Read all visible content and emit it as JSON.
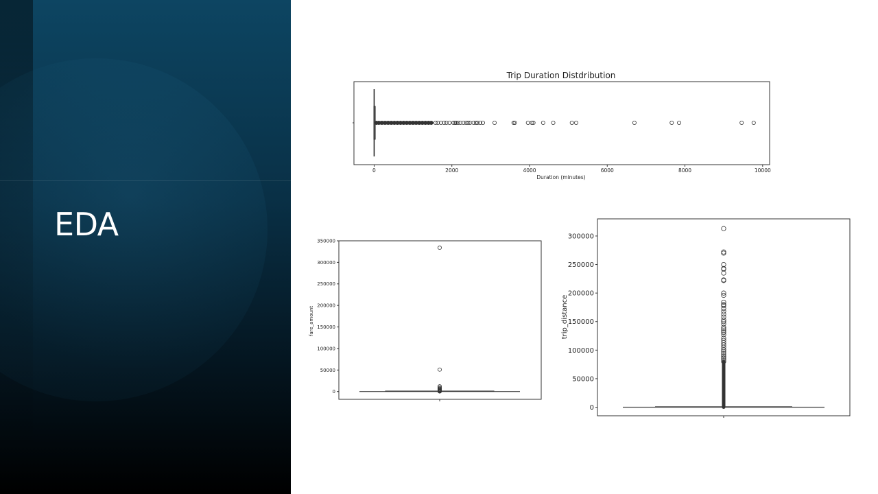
{
  "slide": {
    "title": "EDA"
  },
  "chart_data": [
    {
      "type": "boxplot",
      "orientation": "horizontal",
      "title": "Trip Duration Distdribution",
      "xlabel": "Duration (minutes)",
      "ylabel": "",
      "xlim": [
        -520,
        10180
      ],
      "xticks": [
        0,
        2000,
        4000,
        6000,
        8000,
        10000
      ],
      "box": {
        "q1": 2,
        "median": 10,
        "q3": 20,
        "whisker_low": 0,
        "whisker_high": 45
      },
      "outliers": [
        60,
        120,
        200,
        280,
        360,
        440,
        520,
        600,
        680,
        760,
        840,
        920,
        1000,
        1080,
        1160,
        1240,
        1320,
        1400,
        1470,
        1580,
        1640,
        1720,
        1800,
        1860,
        1940,
        2040,
        2080,
        2110,
        2160,
        2220,
        2300,
        2370,
        2420,
        2470,
        2560,
        2620,
        2660,
        2730,
        2800,
        3100,
        3590,
        3620,
        3960,
        4060,
        4100,
        4350,
        4610,
        5090,
        5200,
        6700,
        7660,
        7850,
        9460,
        9770
      ],
      "dense_outlier_range": [
        45,
        1480
      ]
    },
    {
      "type": "boxplot",
      "orientation": "vertical",
      "title": "",
      "xlabel": "",
      "ylabel": "fare_amount",
      "ylim": [
        -18000,
        350000
      ],
      "yticks": [
        0,
        50000,
        100000,
        150000,
        200000,
        250000,
        300000,
        350000
      ],
      "box": {
        "q1": 6,
        "median": 9,
        "q3": 14,
        "whisker_low": 0,
        "whisker_high": 35
      },
      "outliers": [
        334000,
        51000,
        12000,
        9000,
        7000,
        5500,
        4500,
        3500,
        2500,
        1800,
        1200,
        800,
        400
      ]
    },
    {
      "type": "boxplot",
      "orientation": "vertical",
      "title": "",
      "xlabel": "",
      "ylabel": "trip_distance",
      "ylim": [
        -15000,
        330000
      ],
      "yticks": [
        0,
        50000,
        100000,
        150000,
        200000,
        250000,
        300000
      ],
      "box": {
        "q1": 1,
        "median": 2,
        "q3": 3.5,
        "whisker_low": 0,
        "whisker_high": 8
      },
      "outliers": [
        313000,
        272000,
        270000,
        250000,
        243000,
        242000,
        235000,
        223000,
        222000,
        200000,
        196000,
        184000,
        180000,
        178000,
        173000,
        168000,
        163000,
        158000,
        153000,
        150000,
        146000,
        140000,
        137000,
        134000,
        131000,
        127000,
        121000,
        117000,
        113000,
        109000,
        105000,
        101000,
        98000,
        95000,
        92000,
        89000,
        86000,
        83000,
        80000
      ],
      "dense_outlier_range": [
        20,
        80000
      ]
    }
  ]
}
